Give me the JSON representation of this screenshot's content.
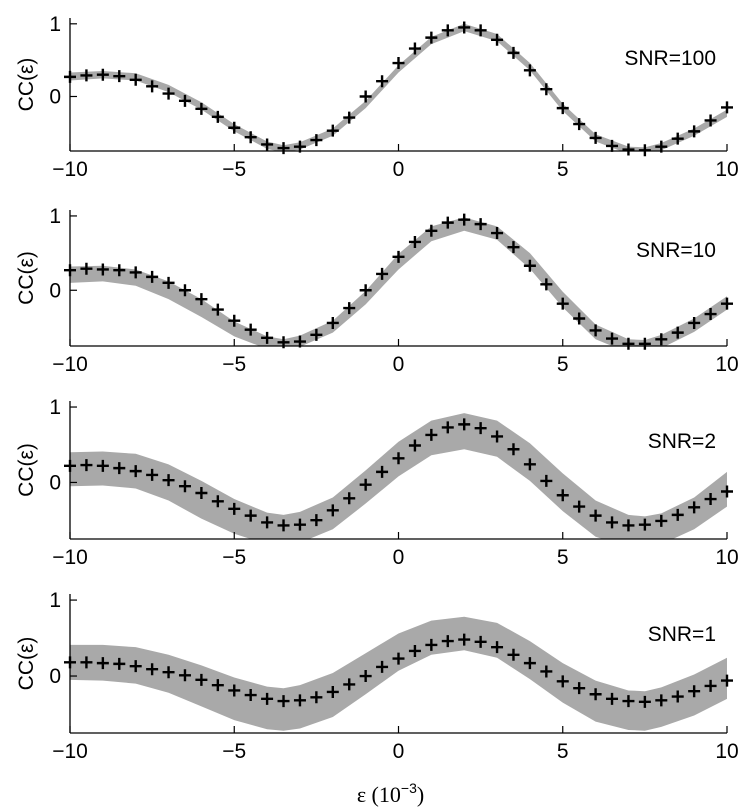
{
  "chart_data": [
    {
      "type": "line",
      "annotation": "SNR=100",
      "ylabel": "CC(ε)",
      "xlim": [
        -10,
        10
      ],
      "ylim": [
        -0.75,
        1.08
      ],
      "xticks": [
        "−10",
        "−5",
        "0",
        "5",
        "10"
      ],
      "yticks": [
        "0",
        "1"
      ],
      "series": [
        {
          "style": "band",
          "x": [
            -10,
            -9,
            -8,
            -7,
            -6,
            -5,
            -4,
            -3.5,
            -3,
            -2,
            -1,
            0,
            1,
            2,
            3,
            4,
            5,
            6,
            7,
            7.5,
            8,
            9,
            10
          ],
          "upper": [
            0.33,
            0.35,
            0.32,
            0.16,
            -0.08,
            -0.38,
            -0.62,
            -0.67,
            -0.63,
            -0.44,
            -0.06,
            0.43,
            0.82,
            1.0,
            0.86,
            0.46,
            -0.1,
            -0.52,
            -0.69,
            -0.7,
            -0.64,
            -0.44,
            -0.18
          ],
          "lower": [
            0.22,
            0.25,
            0.22,
            0.06,
            -0.18,
            -0.48,
            -0.72,
            -0.77,
            -0.73,
            -0.54,
            -0.16,
            0.33,
            0.72,
            0.9,
            0.76,
            0.36,
            -0.2,
            -0.62,
            -0.79,
            -0.8,
            -0.74,
            -0.54,
            -0.28
          ]
        },
        {
          "style": "markers",
          "x": [
            -10,
            -9.5,
            -9,
            -8.5,
            -8,
            -7.5,
            -7,
            -6.5,
            -6,
            -5.5,
            -5,
            -4.5,
            -4,
            -3.5,
            -3,
            -2.5,
            -2,
            -1.5,
            -1,
            -0.5,
            0,
            0.5,
            1,
            1.5,
            2,
            2.5,
            3,
            3.5,
            4,
            4.5,
            5,
            5.5,
            6,
            6.5,
            7,
            7.5,
            8,
            8.5,
            9,
            9.5,
            10
          ],
          "y": [
            0.27,
            0.29,
            0.3,
            0.28,
            0.23,
            0.14,
            0.04,
            -0.06,
            -0.17,
            -0.28,
            -0.43,
            -0.56,
            -0.66,
            -0.71,
            -0.69,
            -0.6,
            -0.47,
            -0.29,
            0.0,
            0.21,
            0.46,
            0.66,
            0.81,
            0.91,
            0.95,
            0.91,
            0.78,
            0.6,
            0.36,
            0.1,
            -0.16,
            -0.38,
            -0.57,
            -0.68,
            -0.73,
            -0.74,
            -0.69,
            -0.58,
            -0.48,
            -0.33,
            -0.15
          ]
        }
      ]
    },
    {
      "type": "line",
      "annotation": "SNR=10",
      "ylabel": "CC(ε)",
      "xlim": [
        -10,
        10
      ],
      "ylim": [
        -0.75,
        1.08
      ],
      "xticks": [
        "−10",
        "−5",
        "0",
        "5",
        "10"
      ],
      "yticks": [
        "0",
        "1"
      ],
      "series": [
        {
          "style": "band",
          "x": [
            -10,
            -9,
            -8,
            -7,
            -6,
            -5,
            -4,
            -3.5,
            -3,
            -2,
            -1,
            0,
            1,
            2,
            3,
            4,
            5,
            6,
            7,
            7.5,
            8,
            9,
            10
          ],
          "upper": [
            0.32,
            0.33,
            0.28,
            0.12,
            -0.12,
            -0.42,
            -0.62,
            -0.66,
            -0.61,
            -0.41,
            -0.01,
            0.49,
            0.86,
            0.98,
            0.86,
            0.5,
            -0.02,
            -0.46,
            -0.66,
            -0.67,
            -0.6,
            -0.38,
            -0.08
          ],
          "lower": [
            0.1,
            0.12,
            0.06,
            -0.12,
            -0.36,
            -0.62,
            -0.79,
            -0.8,
            -0.76,
            -0.57,
            -0.19,
            0.28,
            0.66,
            0.8,
            0.68,
            0.29,
            -0.23,
            -0.66,
            -0.84,
            -0.84,
            -0.78,
            -0.56,
            -0.26
          ]
        },
        {
          "style": "markers",
          "x": [
            -10,
            -9.5,
            -9,
            -8.5,
            -8,
            -7.5,
            -7,
            -6.5,
            -6,
            -5.5,
            -5,
            -4.5,
            -4,
            -3.5,
            -3,
            -2.5,
            -2,
            -1.5,
            -1,
            -0.5,
            0,
            0.5,
            1,
            1.5,
            2,
            2.5,
            3,
            3.5,
            4,
            4.5,
            5,
            5.5,
            6,
            6.5,
            7,
            7.5,
            8,
            8.5,
            9,
            9.5,
            10
          ],
          "y": [
            0.27,
            0.29,
            0.28,
            0.27,
            0.24,
            0.18,
            0.1,
            0.0,
            -0.12,
            -0.26,
            -0.41,
            -0.53,
            -0.64,
            -0.7,
            -0.69,
            -0.6,
            -0.44,
            -0.24,
            0.0,
            0.22,
            0.45,
            0.65,
            0.8,
            0.91,
            0.95,
            0.89,
            0.77,
            0.58,
            0.33,
            0.08,
            -0.18,
            -0.38,
            -0.54,
            -0.65,
            -0.72,
            -0.72,
            -0.66,
            -0.57,
            -0.44,
            -0.32,
            -0.18
          ]
        }
      ]
    },
    {
      "type": "line",
      "annotation": "SNR=2",
      "ylabel": "CC(ε)",
      "xlim": [
        -10,
        10
      ],
      "ylim": [
        -0.75,
        1.08
      ],
      "xticks": [
        "−10",
        "−5",
        "0",
        "5",
        "10"
      ],
      "yticks": [
        "0",
        "1"
      ],
      "series": [
        {
          "style": "band",
          "x": [
            -10,
            -9,
            -8,
            -7,
            -6,
            -5,
            -4,
            -3.5,
            -3,
            -2,
            -1,
            0,
            1,
            2,
            3,
            4,
            5,
            6,
            7,
            7.5,
            8,
            9,
            10
          ],
          "upper": [
            0.4,
            0.41,
            0.38,
            0.24,
            0.02,
            -0.22,
            -0.4,
            -0.43,
            -0.39,
            -0.2,
            0.16,
            0.54,
            0.82,
            0.92,
            0.82,
            0.52,
            0.12,
            -0.24,
            -0.43,
            -0.45,
            -0.41,
            -0.2,
            0.14
          ],
          "lower": [
            -0.05,
            -0.04,
            -0.08,
            -0.24,
            -0.48,
            -0.68,
            -0.82,
            -0.84,
            -0.8,
            -0.62,
            -0.28,
            0.08,
            0.36,
            0.44,
            0.34,
            0.02,
            -0.38,
            -0.72,
            -0.86,
            -0.86,
            -0.82,
            -0.62,
            -0.32
          ]
        },
        {
          "style": "markers",
          "x": [
            -10,
            -9.5,
            -9,
            -8.5,
            -8,
            -7.5,
            -7,
            -6.5,
            -6,
            -5.5,
            -5,
            -4.5,
            -4,
            -3.5,
            -3,
            -2.5,
            -2,
            -1.5,
            -1,
            -0.5,
            0,
            0.5,
            1,
            1.5,
            2,
            2.5,
            3,
            3.5,
            4,
            4.5,
            5,
            5.5,
            6,
            6.5,
            7,
            7.5,
            8,
            8.5,
            9,
            9.5,
            10
          ],
          "y": [
            0.22,
            0.23,
            0.22,
            0.19,
            0.15,
            0.1,
            0.03,
            -0.05,
            -0.14,
            -0.25,
            -0.35,
            -0.44,
            -0.53,
            -0.57,
            -0.56,
            -0.5,
            -0.37,
            -0.21,
            -0.03,
            0.14,
            0.32,
            0.49,
            0.63,
            0.73,
            0.77,
            0.72,
            0.61,
            0.44,
            0.24,
            0.02,
            -0.17,
            -0.32,
            -0.44,
            -0.53,
            -0.57,
            -0.56,
            -0.51,
            -0.43,
            -0.33,
            -0.22,
            -0.12
          ]
        }
      ]
    },
    {
      "type": "line",
      "annotation": "SNR=1",
      "ylabel": "CC(ε)",
      "xlabel": "ε (10",
      "xlabel_exponent": "−3",
      "xlabel_suffix": ")",
      "xlim": [
        -10,
        10
      ],
      "ylim": [
        -0.75,
        1.08
      ],
      "xticks": [
        "−10",
        "−5",
        "0",
        "5",
        "10"
      ],
      "yticks": [
        "0",
        "1"
      ],
      "series": [
        {
          "style": "band",
          "x": [
            -10,
            -9,
            -8,
            -7,
            -6,
            -5,
            -4,
            -3.5,
            -3,
            -2,
            -1,
            0,
            1,
            2,
            3,
            4,
            5,
            6,
            7,
            7.5,
            8,
            9,
            10
          ],
          "upper": [
            0.41,
            0.41,
            0.38,
            0.28,
            0.14,
            -0.02,
            -0.14,
            -0.16,
            -0.12,
            0.04,
            0.3,
            0.56,
            0.73,
            0.78,
            0.7,
            0.46,
            0.17,
            -0.06,
            -0.19,
            -0.2,
            -0.15,
            0.02,
            0.24
          ],
          "lower": [
            -0.05,
            -0.06,
            -0.1,
            -0.22,
            -0.4,
            -0.58,
            -0.7,
            -0.72,
            -0.69,
            -0.54,
            -0.24,
            0.07,
            0.28,
            0.34,
            0.24,
            -0.04,
            -0.35,
            -0.6,
            -0.71,
            -0.72,
            -0.67,
            -0.52,
            -0.3
          ]
        },
        {
          "style": "markers",
          "x": [
            -10,
            -9.5,
            -9,
            -8.5,
            -8,
            -7.5,
            -7,
            -6.5,
            -6,
            -5.5,
            -5,
            -4.5,
            -4,
            -3.5,
            -3,
            -2.5,
            -2,
            -1.5,
            -1,
            -0.5,
            0,
            0.5,
            1,
            1.5,
            2,
            2.5,
            3,
            3.5,
            4,
            4.5,
            5,
            5.5,
            6,
            6.5,
            7,
            7.5,
            8,
            8.5,
            9,
            9.5,
            10
          ],
          "y": [
            0.18,
            0.18,
            0.17,
            0.16,
            0.13,
            0.09,
            0.05,
            0.01,
            -0.05,
            -0.12,
            -0.19,
            -0.25,
            -0.3,
            -0.33,
            -0.32,
            -0.28,
            -0.21,
            -0.11,
            0.0,
            0.12,
            0.23,
            0.33,
            0.41,
            0.46,
            0.48,
            0.45,
            0.38,
            0.28,
            0.17,
            0.06,
            -0.07,
            -0.16,
            -0.24,
            -0.3,
            -0.33,
            -0.34,
            -0.32,
            -0.27,
            -0.2,
            -0.13,
            -0.06
          ]
        }
      ]
    }
  ]
}
